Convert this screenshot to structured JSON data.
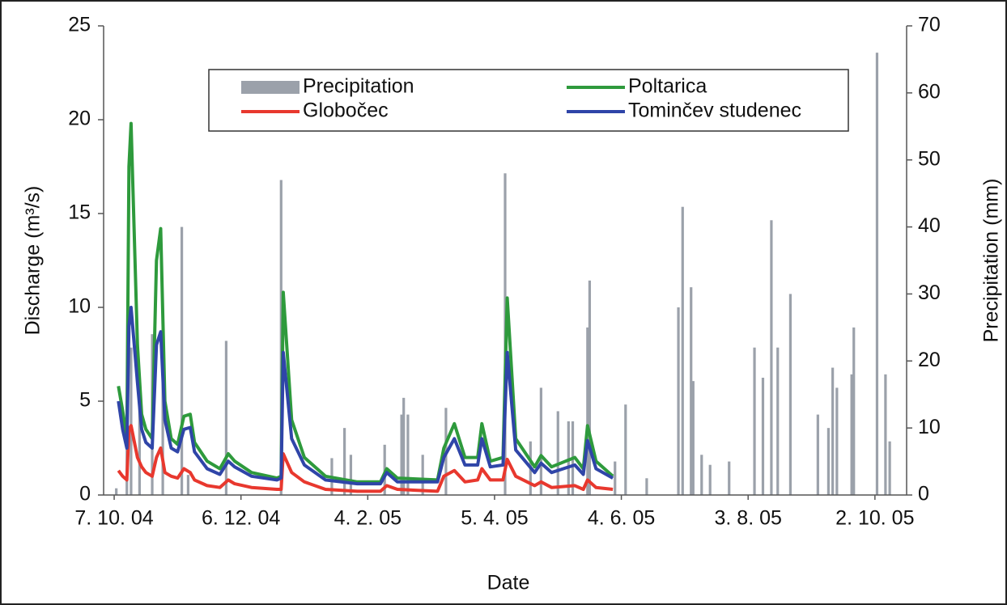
{
  "chart_data": {
    "type": "line",
    "xlabel": "Date",
    "ylabel": "Discharge (m³/s)",
    "y2label": "Precipitation (mm)",
    "xlim": [
      -5,
      375
    ],
    "xticks": [
      {
        "value": 0,
        "label": "7. 10. 04"
      },
      {
        "value": 60,
        "label": "6. 12. 04"
      },
      {
        "value": 120,
        "label": "4. 2. 05"
      },
      {
        "value": 180,
        "label": "5. 4. 05"
      },
      {
        "value": 240,
        "label": "4. 6. 05"
      },
      {
        "value": 300,
        "label": "3. 8. 05"
      },
      {
        "value": 360,
        "label": "2. 10. 05"
      }
    ],
    "ylim": [
      0,
      25
    ],
    "yticks": [
      0,
      5,
      10,
      15,
      20,
      25
    ],
    "y2lim": [
      0,
      70
    ],
    "y2ticks": [
      0,
      10,
      20,
      30,
      40,
      50,
      60,
      70
    ],
    "series": [
      {
        "name": "Precipitation",
        "type": "bar",
        "axis": "y2",
        "color": "#9ba1aa",
        "x": [
          1,
          6,
          8,
          12,
          18,
          23,
          32,
          35,
          53,
          79,
          103,
          109,
          112,
          128,
          136,
          137,
          139,
          146,
          157,
          185,
          197,
          202,
          210,
          215,
          217,
          224,
          225,
          237,
          242,
          252,
          267,
          269,
          273,
          274,
          278,
          282,
          291,
          303,
          307,
          311,
          314,
          320,
          333,
          338,
          340,
          342,
          349,
          350,
          361,
          365,
          367
        ],
        "values": [
          1,
          14,
          22,
          14,
          24,
          27,
          40,
          3,
          23,
          47,
          5.5,
          10,
          6,
          7.5,
          12,
          14.5,
          12,
          6,
          13,
          48,
          8,
          16,
          12.5,
          11,
          11,
          25,
          32,
          5,
          13.5,
          2.5,
          28,
          43,
          31,
          17,
          6,
          4.5,
          5,
          22,
          17.5,
          41,
          22,
          30,
          12,
          10,
          19,
          16,
          18,
          25,
          66,
          18,
          8
        ]
      },
      {
        "name": "Poltarica",
        "color": "#2e9a3c",
        "x": [
          2,
          4,
          6,
          7,
          8,
          11,
          13,
          15,
          18,
          20,
          22,
          24,
          27,
          30,
          33,
          36,
          38,
          44,
          50,
          54,
          57,
          65,
          77,
          79,
          80,
          84,
          90,
          100,
          115,
          126,
          129,
          134,
          153,
          156,
          161,
          166,
          172,
          174,
          178,
          184,
          186,
          190,
          199,
          202,
          207,
          218,
          222,
          224,
          228,
          236
        ],
        "values": [
          5.8,
          4.5,
          3.0,
          17.5,
          19.8,
          8,
          4.3,
          3.5,
          3.0,
          12.5,
          14.2,
          5,
          3.0,
          2.7,
          4.2,
          4.3,
          2.8,
          1.8,
          1.4,
          2.2,
          1.8,
          1.2,
          0.9,
          1.0,
          10.8,
          4,
          2.0,
          1.0,
          0.7,
          0.7,
          1.4,
          0.9,
          0.8,
          2.5,
          3.8,
          2.0,
          2.0,
          3.8,
          1.8,
          2.0,
          10.5,
          3.0,
          1.5,
          2.1,
          1.5,
          2.0,
          1.4,
          3.7,
          1.8,
          1.0
        ]
      },
      {
        "name": "Globočec",
        "color": "#e8382e",
        "x": [
          2,
          4,
          6,
          7,
          8,
          11,
          13,
          15,
          18,
          20,
          22,
          24,
          27,
          30,
          33,
          36,
          38,
          44,
          50,
          54,
          57,
          65,
          77,
          79,
          80,
          84,
          90,
          100,
          115,
          126,
          129,
          134,
          153,
          156,
          161,
          166,
          172,
          174,
          178,
          184,
          186,
          190,
          199,
          202,
          207,
          218,
          222,
          224,
          228,
          236
        ],
        "values": [
          1.3,
          1.0,
          0.8,
          3.5,
          3.7,
          2,
          1.5,
          1.2,
          1.0,
          2.0,
          2.5,
          1.2,
          1.0,
          0.9,
          1.4,
          1.2,
          0.8,
          0.5,
          0.4,
          0.8,
          0.6,
          0.4,
          0.3,
          0.3,
          2.2,
          1.2,
          0.7,
          0.3,
          0.2,
          0.2,
          0.5,
          0.3,
          0.2,
          1.0,
          1.3,
          0.7,
          0.8,
          1.4,
          0.8,
          0.8,
          1.9,
          1.0,
          0.5,
          0.7,
          0.4,
          0.5,
          0.3,
          0.8,
          0.4,
          0.3
        ]
      },
      {
        "name": "Tominčev studenec",
        "color": "#2f45a8",
        "x": [
          2,
          4,
          6,
          7,
          8,
          11,
          13,
          15,
          18,
          20,
          22,
          24,
          27,
          30,
          33,
          36,
          38,
          44,
          50,
          54,
          57,
          65,
          77,
          79,
          80,
          84,
          90,
          100,
          115,
          126,
          129,
          134,
          153,
          156,
          161,
          166,
          172,
          174,
          178,
          184,
          186,
          190,
          199,
          202,
          207,
          218,
          222,
          224,
          228,
          236
        ],
        "values": [
          5.0,
          3.5,
          2.5,
          9.0,
          10.0,
          6,
          3.5,
          2.8,
          2.5,
          8,
          8.7,
          4,
          2.5,
          2.3,
          3.5,
          3.6,
          2.3,
          1.4,
          1.1,
          1.8,
          1.5,
          1.0,
          0.8,
          0.9,
          7.6,
          3,
          1.6,
          0.8,
          0.6,
          0.6,
          1.2,
          0.7,
          0.7,
          2.0,
          3.0,
          1.6,
          1.6,
          3.0,
          1.5,
          1.6,
          7.6,
          2.4,
          1.2,
          1.7,
          1.2,
          1.6,
          1.1,
          2.9,
          1.4,
          0.9
        ]
      }
    ]
  }
}
